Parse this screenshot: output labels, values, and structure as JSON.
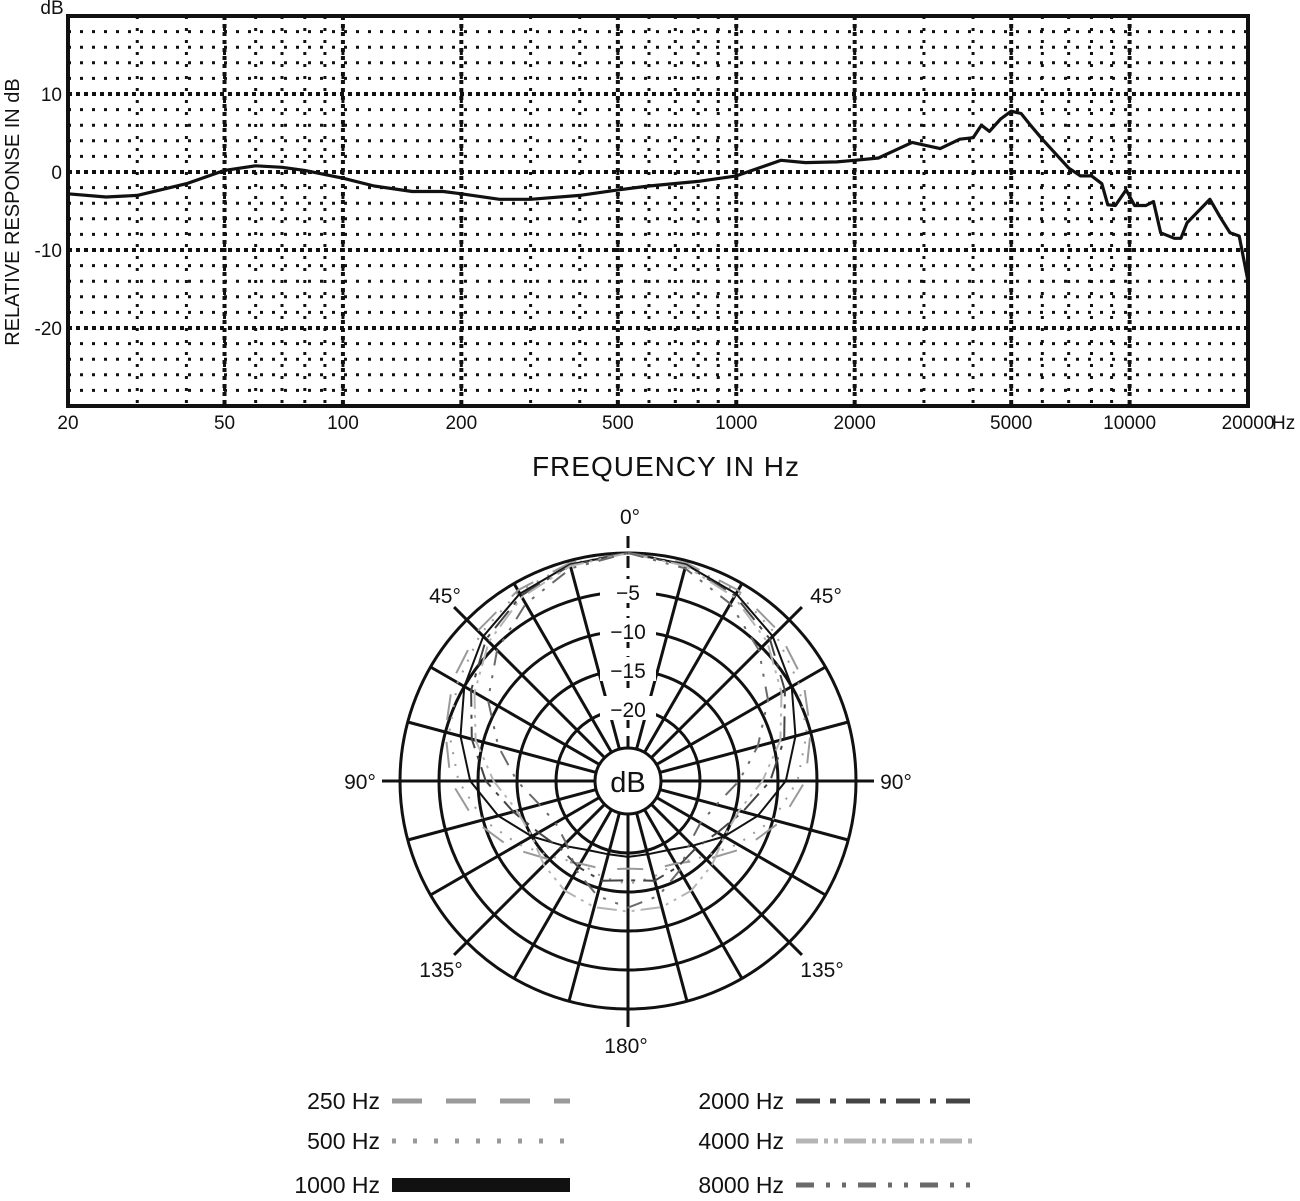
{
  "chart_data": [
    {
      "type": "line",
      "xlabel": "FREQUENCY IN Hz",
      "ylabel": "RELATIVE RESPONSE IN dB",
      "y_unit_label": "dB",
      "x_unit_label": "Hz",
      "x_scale": "log",
      "xlim": [
        20,
        20000
      ],
      "ylim": [
        -30,
        20
      ],
      "grid": true,
      "x_ticks": [
        {
          "value": 20,
          "label": "20"
        },
        {
          "value": 50,
          "label": "50"
        },
        {
          "value": 100,
          "label": "100"
        },
        {
          "value": 200,
          "label": "200"
        },
        {
          "value": 500,
          "label": "500"
        },
        {
          "value": 1000,
          "label": "1000"
        },
        {
          "value": 2000,
          "label": "2000"
        },
        {
          "value": 5000,
          "label": "5000"
        },
        {
          "value": 10000,
          "label": "10000"
        },
        {
          "value": 20000,
          "label": "20000"
        }
      ],
      "y_ticks": [
        {
          "value": 10,
          "label": "10"
        },
        {
          "value": 0,
          "label": "0"
        },
        {
          "value": -10,
          "label": "-10"
        },
        {
          "value": -20,
          "label": "-20"
        }
      ],
      "series": [
        {
          "x": [
            20,
            25,
            30,
            40,
            50,
            60,
            70,
            80,
            100,
            120,
            150,
            180,
            200,
            250,
            300,
            400,
            500,
            600,
            800,
            1000,
            1300,
            1500,
            1800,
            2000,
            2300,
            2800,
            3300,
            3700,
            4000,
            4200,
            4400,
            4700,
            5000,
            5300,
            5600,
            6000,
            7000,
            7500,
            8000,
            8500,
            8800,
            9200,
            9800,
            10300,
            11000,
            11500,
            12000,
            13000,
            13500,
            14000,
            16000,
            17000,
            18000,
            19000,
            20000
          ],
          "y": [
            -2.8,
            -3.2,
            -3,
            -1.5,
            0.2,
            0.8,
            0.6,
            0.2,
            -0.8,
            -1.8,
            -2.5,
            -2.5,
            -2.8,
            -3.5,
            -3.5,
            -3,
            -2.3,
            -1.8,
            -1.2,
            -0.5,
            1.5,
            1.2,
            1.3,
            1.5,
            1.8,
            3.8,
            3,
            4.2,
            4.4,
            6,
            5.2,
            6.8,
            7.8,
            7.5,
            6,
            4.2,
            0.5,
            -0.5,
            -0.5,
            -1.5,
            -4.2,
            -4.3,
            -2.3,
            -4.3,
            -4.3,
            -3.8,
            -7.8,
            -8.5,
            -8.5,
            -6.5,
            -3.5,
            -5.8,
            -7.8,
            -8.2,
            -14
          ]
        }
      ]
    },
    {
      "type": "polar",
      "center_label": "dB",
      "angle_labels": [
        "0°",
        "45°",
        "45°",
        "90°",
        "90°",
        "135°",
        "135°",
        "180°"
      ],
      "ring_values": [
        -5,
        -10,
        -15,
        -20
      ],
      "ring_labels": [
        "−5",
        "−10",
        "−15",
        "−20"
      ],
      "rlim": [
        -25,
        0
      ],
      "series": [
        {
          "name": "250 Hz",
          "color": "#9a9a9a",
          "style": "dash",
          "angles": [
            0,
            15,
            30,
            45,
            60,
            75,
            90,
            105,
            120,
            135,
            150,
            165,
            180,
            195,
            210,
            225,
            240,
            255,
            270,
            285,
            300,
            315,
            330,
            345
          ],
          "values": [
            0,
            -0.3,
            -1,
            -2,
            -3.3,
            -5,
            -6.5,
            -9,
            -12,
            -15,
            -17,
            -17.5,
            -18,
            -17.5,
            -17,
            -15,
            -12,
            -9,
            -6.5,
            -5,
            -3.3,
            -2,
            -1,
            -0.3
          ]
        },
        {
          "name": "500 Hz",
          "color": "#9a9a9a",
          "style": "dot",
          "angles": [
            0,
            15,
            30,
            45,
            60,
            75,
            90,
            105,
            120,
            135,
            150,
            165,
            180,
            195,
            210,
            225,
            240,
            255,
            270,
            285,
            300,
            315,
            330,
            345
          ],
          "values": [
            0,
            -0.4,
            -1.2,
            -2.5,
            -4,
            -5.5,
            -7.5,
            -10,
            -13,
            -15.5,
            -17,
            -16.5,
            -16,
            -16.5,
            -17,
            -15.5,
            -13,
            -10,
            -7.5,
            -5.5,
            -4,
            -2.5,
            -1.2,
            -0.4
          ]
        },
        {
          "name": "1000 Hz",
          "color": "#111111",
          "style": "solid",
          "angles": [
            0,
            15,
            30,
            45,
            60,
            75,
            90,
            105,
            120,
            135,
            150,
            165,
            180,
            195,
            210,
            225,
            240,
            255,
            270,
            285,
            300,
            315,
            330,
            345
          ],
          "values": [
            0,
            -0.5,
            -1.5,
            -3,
            -5,
            -7,
            -9,
            -12,
            -15,
            -17.5,
            -19,
            -19.5,
            -19.5,
            -19.5,
            -19,
            -17.5,
            -15,
            -12,
            -9,
            -7,
            -5,
            -3,
            -1.5,
            -0.5
          ]
        },
        {
          "name": "2000 Hz",
          "color": "#444444",
          "style": "dashdot",
          "angles": [
            0,
            15,
            30,
            45,
            60,
            75,
            90,
            105,
            120,
            135,
            150,
            165,
            180,
            195,
            210,
            225,
            240,
            255,
            270,
            285,
            300,
            315,
            330,
            345
          ],
          "values": [
            0,
            -0.6,
            -1.8,
            -3.5,
            -6,
            -8.5,
            -11,
            -14,
            -16,
            -17,
            -16.5,
            -16,
            -16.5,
            -16,
            -16.5,
            -17,
            -16,
            -14,
            -11,
            -8.5,
            -6,
            -3.5,
            -1.8,
            -0.6
          ]
        },
        {
          "name": "4000 Hz",
          "color": "#b5b5b5",
          "style": "dashdotdot",
          "angles": [
            0,
            15,
            30,
            45,
            60,
            75,
            90,
            105,
            120,
            135,
            150,
            165,
            180,
            195,
            210,
            225,
            240,
            255,
            270,
            285,
            300,
            315,
            330,
            345
          ],
          "values": [
            0,
            -0.7,
            -2,
            -4,
            -6.5,
            -9,
            -12,
            -14.5,
            -15,
            -14,
            -13,
            -12.5,
            -12.5,
            -12.5,
            -13,
            -14,
            -15,
            -14.5,
            -12,
            -9,
            -6.5,
            -4,
            -2,
            -0.7
          ]
        },
        {
          "name": "8000 Hz",
          "color": "#6a6a6a",
          "style": "dashdotdot2",
          "angles": [
            0,
            15,
            30,
            45,
            60,
            75,
            90,
            105,
            120,
            135,
            150,
            165,
            180,
            195,
            210,
            225,
            240,
            255,
            270,
            285,
            300,
            315,
            330,
            345
          ],
          "values": [
            0,
            -1,
            -3,
            -5.5,
            -8.5,
            -12,
            -15,
            -17.5,
            -18.5,
            -18,
            -16,
            -14,
            -13,
            -14,
            -16,
            -18,
            -18.5,
            -17.5,
            -15,
            -12,
            -8.5,
            -5.5,
            -3,
            -1
          ]
        }
      ]
    }
  ]
}
